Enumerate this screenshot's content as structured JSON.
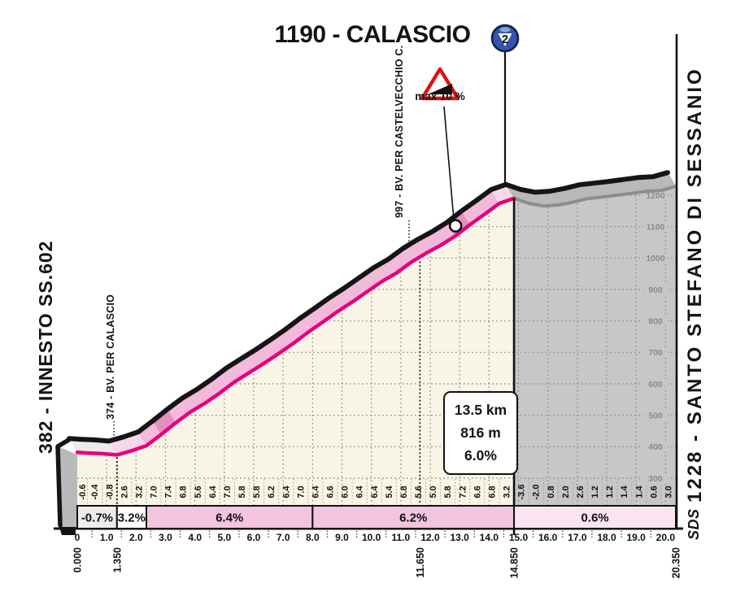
{
  "title": {
    "text": "1190 - CALASCIO",
    "category_badge": "2"
  },
  "labels": {
    "start_big": "382 - INNESTO SS.602",
    "finish_big": "1228 - SANTO STEFANO DI SESSANIO",
    "mid1": "374 - BV. PER CALASCIO",
    "mid2": "997 - BV. PER CASTELVECCHIO C.",
    "max_gradient": "max 10 %",
    "logo": "SDS"
  },
  "stats_box": {
    "distance": "13.5 km",
    "elevation_gain": "816 m",
    "avg_gradient": "6.0%"
  },
  "chart_data": {
    "type": "area",
    "x_unit": "km",
    "y_unit": "m",
    "x_range": [
      0,
      20.35
    ],
    "y_axis_ticks": [
      300,
      400,
      500,
      600,
      700,
      800,
      900,
      1000,
      1100,
      1200
    ],
    "start_elevation": 382,
    "summit": {
      "km": 14.85,
      "elevation": 1190,
      "name": "CALASCIO",
      "category": "2"
    },
    "finish": {
      "km": 20.35,
      "elevation": 1228,
      "name": "SANTO STEFANO DI SESSANIO"
    },
    "waypoints": [
      {
        "km": 0.0,
        "elevation": 382,
        "label": "INNESTO SS.602"
      },
      {
        "km": 1.35,
        "elevation": 374,
        "label": "BV. PER CALASCIO"
      },
      {
        "km": 11.65,
        "elevation": 997,
        "label": "BV. PER CASTELVECCHIO C."
      },
      {
        "km": 14.85,
        "elevation": 1190,
        "label": "CALASCIO"
      },
      {
        "km": 20.35,
        "elevation": 1228,
        "label": "SANTO STEFANO DI SESSANIO"
      }
    ],
    "gradient_segments": {
      "first_length_km": 0.35,
      "segment_length_km": 0.5,
      "values": [
        -0.6,
        -0.4,
        -0.8,
        2.6,
        3.2,
        7.0,
        7.4,
        6.8,
        5.6,
        6.4,
        7.0,
        5.8,
        5.8,
        6.2,
        6.4,
        7.0,
        6.4,
        6.6,
        6.0,
        6.4,
        6.4,
        5.4,
        6.8,
        5.6,
        5.0,
        5.8,
        7.2,
        6.6,
        6.8,
        3.2,
        -3.6,
        -2.0,
        0.8,
        2.0,
        2.6,
        1.2,
        1.2,
        1.4,
        1.4,
        0.6,
        3.0
      ]
    },
    "avg_gradient_bar": [
      {
        "from": 0,
        "to": 1.35,
        "label": "-0.7%",
        "bg": "#ececec"
      },
      {
        "from": 1.35,
        "to": 2.35,
        "label": "3.2%",
        "bg": "#ffffff"
      },
      {
        "from": 2.35,
        "to": 8.0,
        "label": "6.4%",
        "bg": "#f3c4de"
      },
      {
        "from": 8.0,
        "to": 14.85,
        "label": "6.2%",
        "bg": "#f3c4de"
      },
      {
        "from": 14.85,
        "to": 20.35,
        "label": "0.6%",
        "bg": "#fbe4f0"
      }
    ],
    "x_ticks": [
      "0",
      "1.0",
      "2.0",
      "3.0",
      "4.0",
      "5.0",
      "6.0",
      "7.0",
      "8.0",
      "9.0",
      "10.0",
      "11.0",
      "12.0",
      "13.0",
      "14.0",
      "15.0",
      "16.0",
      "17.0",
      "18.0",
      "19.0",
      "20.0"
    ],
    "x_marker_labels": [
      {
        "km": 0.0,
        "label": "0.000"
      },
      {
        "km": 1.35,
        "label": "1.350"
      },
      {
        "km": 11.65,
        "label": "11.650"
      },
      {
        "km": 14.85,
        "label": "14.850"
      },
      {
        "km": 20.35,
        "label": "20.350"
      }
    ],
    "max_gradient_marker_km": 13.0,
    "grid": true,
    "legend": "none"
  },
  "colors": {
    "road_pink": "#e6007e",
    "band_pink": "#f2b9da",
    "band_dark_pink": "#e48fc2",
    "band_light_pink": "#f7d8e9",
    "band_white": "#f0e9ec",
    "fill_cream": "#f8f5e6",
    "fill_grey": "#c7c7c7",
    "band_grey": "#b9b9b9",
    "road_grey": "#8d8d8d",
    "silhouette": "#151515",
    "grid_dot": "#8c8c8c",
    "elev_label": "#8a8a8a",
    "badge_blue": "#3454a8",
    "badge_ring": "#131f55",
    "warn_red": "#e01212"
  }
}
